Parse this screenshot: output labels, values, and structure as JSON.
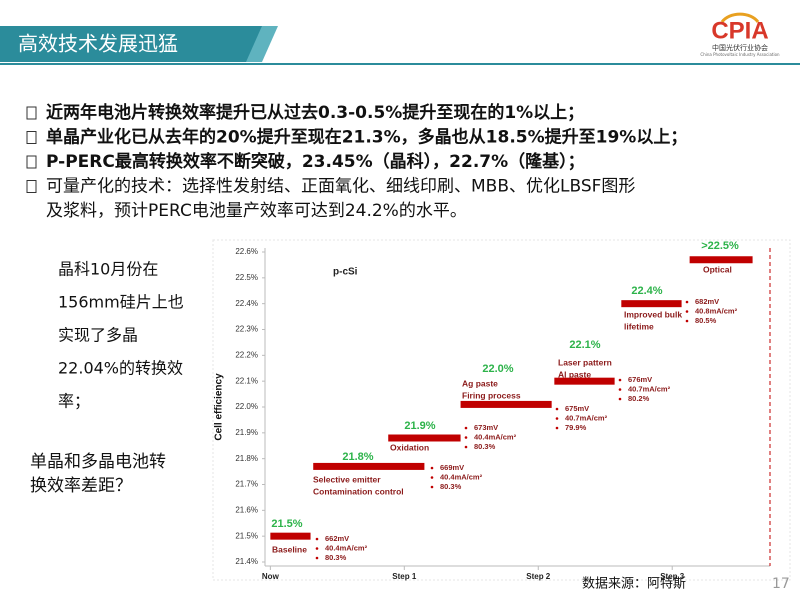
{
  "header": {
    "title": "高效技术发展迅猛"
  },
  "logo": {
    "name": "CPIA",
    "subtitle": "中国光伏行业协会",
    "english": "China Photovoltaic Industry Association"
  },
  "bullets": [
    [
      "近两年电池片转换效率提升已从过去0.3-0.5%提升至现在的1%以上；"
    ],
    [
      "单晶产业化已从去年的20%提升至现在21.3%，多晶也从18.5%提升至19%以上；"
    ],
    [
      "P-PERC最高转换效率不断突破，23.45%（晶科），22.7%（隆基）；"
    ],
    [
      "可量产化的技术：选择性发射结、正面氧化、细线印刷、MBB、优化LBSF图形",
      "及浆料，预计PERC电池量产效率可达到24.2%的水平。"
    ]
  ],
  "side_note": [
    "晶科10月份在",
    "156mm硅片上也",
    "实现了多晶",
    "22.04%的转换效",
    "率；"
  ],
  "question": [
    "单晶和多晶电池转",
    "换效率差距？"
  ],
  "chart_data": {
    "type": "step",
    "annotation": "p-cSi",
    "ylabel": "Cell efficiency",
    "color": "#c00000",
    "value_label_color": "#2db34a",
    "categories": [
      [
        "Baseline"
      ],
      [
        "Selective emitter",
        "Contamination control"
      ],
      [
        "Oxidation"
      ],
      [
        "Ag paste",
        "Firing process"
      ],
      [
        "Laser pattern",
        "Al paste"
      ],
      [
        "Improved bulk",
        "lifetime"
      ],
      [
        "Optical"
      ]
    ],
    "values": [
      21.5,
      21.77,
      21.88,
      22.01,
      22.1,
      22.4,
      22.57
    ],
    "value_labels": [
      "21.5%",
      "21.8%",
      "21.9%",
      "22.0%",
      "22.1%",
      "22.4%",
      ">22.5%"
    ],
    "x_start": [
      0,
      0.32,
      0.88,
      1.42,
      2.12,
      2.62,
      3.13
    ],
    "x_end": [
      0.3,
      1.15,
      1.42,
      2.1,
      2.57,
      3.07,
      3.6
    ],
    "details": [
      [
        "662mV",
        "40.4mA/cm²",
        "80.3%"
      ],
      [
        "669mV",
        "40.4mA/cm²",
        "80.3%"
      ],
      [
        "673mV",
        "40.4mA/cm²",
        "80.3%"
      ],
      [
        "675mV",
        "40.7mA/cm²",
        "79.9%"
      ],
      [
        "676mV",
        "40.7mA/cm²",
        "80.2%"
      ],
      [
        "682mV",
        "40.8mA/cm²",
        "80.5%"
      ],
      []
    ],
    "xlim": [
      -0.04,
      3.73
    ],
    "xticks": [
      {
        "value": 0,
        "label": "Now"
      },
      {
        "value": 1,
        "label": "Step 1"
      },
      {
        "value": 2,
        "label": "Step 2"
      },
      {
        "value": 3,
        "label": "Step 3"
      }
    ],
    "ylim": [
      21.4,
      22.6
    ],
    "yticks": [
      {
        "value": 21.4,
        "label": "21.4%"
      },
      {
        "value": 21.5,
        "label": "21.5%"
      },
      {
        "value": 21.6,
        "label": "21.6%"
      },
      {
        "value": 21.7,
        "label": "21.7%"
      },
      {
        "value": 21.8,
        "label": "21.8%"
      },
      {
        "value": 21.9,
        "label": "21.9%"
      },
      {
        "value": 22.0,
        "label": "22.0%"
      },
      {
        "value": 22.1,
        "label": "22.1%"
      },
      {
        "value": 22.2,
        "label": "22.2%"
      },
      {
        "value": 22.3,
        "label": "22.3%"
      },
      {
        "value": 22.4,
        "label": "22.4%"
      },
      {
        "value": 22.5,
        "label": "22.5%"
      },
      {
        "value": 22.6,
        "label": "22.6%"
      }
    ]
  },
  "footer": {
    "source": "数据来源：阿特斯",
    "page": 17
  }
}
